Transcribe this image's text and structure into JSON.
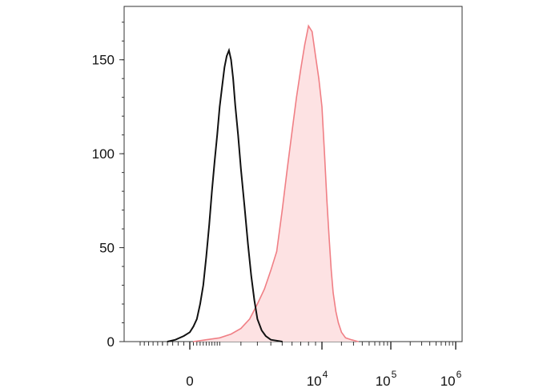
{
  "chart_data": {
    "type": "area",
    "x_scale": "biexponential",
    "x_ticks": [
      {
        "label": "0"
      },
      {
        "label": "10",
        "exponent": "4"
      },
      {
        "label": "10",
        "exponent": "5"
      },
      {
        "label": "10",
        "exponent": "6"
      }
    ],
    "y_ticks": [
      "0",
      "50",
      "100",
      "150"
    ],
    "ylim": [
      0,
      175
    ],
    "colors": {
      "control": "#111111",
      "stained_line": "#f07f85",
      "stained_fill": "#fde2e3"
    },
    "series": [
      {
        "style": "line",
        "color": "#111111",
        "points": [
          [
            -400,
            0
          ],
          [
            -250,
            1
          ],
          [
            -100,
            3
          ],
          [
            0,
            5
          ],
          [
            100,
            8
          ],
          [
            200,
            12
          ],
          [
            300,
            20
          ],
          [
            400,
            30
          ],
          [
            500,
            45
          ],
          [
            600,
            62
          ],
          [
            700,
            80
          ],
          [
            800,
            96
          ],
          [
            900,
            110
          ],
          [
            1000,
            125
          ],
          [
            1100,
            136
          ],
          [
            1200,
            146
          ],
          [
            1300,
            152
          ],
          [
            1400,
            155
          ],
          [
            1500,
            150
          ],
          [
            1600,
            140
          ],
          [
            1700,
            126
          ],
          [
            1850,
            110
          ],
          [
            2000,
            92
          ],
          [
            2200,
            72
          ],
          [
            2400,
            52
          ],
          [
            2600,
            35
          ],
          [
            2800,
            22
          ],
          [
            3000,
            12
          ],
          [
            3300,
            6
          ],
          [
            3600,
            3
          ],
          [
            4000,
            1
          ],
          [
            5000,
            0
          ]
        ]
      },
      {
        "style": "filled",
        "color": "#f07f85",
        "points": [
          [
            100,
            0
          ],
          [
            500,
            1
          ],
          [
            1000,
            2
          ],
          [
            1500,
            4
          ],
          [
            2000,
            7
          ],
          [
            2500,
            12
          ],
          [
            3000,
            20
          ],
          [
            3500,
            28
          ],
          [
            4000,
            38
          ],
          [
            4500,
            48
          ],
          [
            5000,
            70
          ],
          [
            5500,
            92
          ],
          [
            6000,
            112
          ],
          [
            6500,
            130
          ],
          [
            7000,
            145
          ],
          [
            7500,
            158
          ],
          [
            8000,
            168
          ],
          [
            8500,
            165
          ],
          [
            9000,
            152
          ],
          [
            9500,
            140
          ],
          [
            10000,
            125
          ],
          [
            11000,
            100
          ],
          [
            12000,
            75
          ],
          [
            13000,
            55
          ],
          [
            14000,
            38
          ],
          [
            15000,
            26
          ],
          [
            16500,
            16
          ],
          [
            18000,
            10
          ],
          [
            20000,
            5
          ],
          [
            23000,
            2
          ],
          [
            28000,
            1
          ],
          [
            35000,
            0
          ]
        ]
      }
    ]
  }
}
